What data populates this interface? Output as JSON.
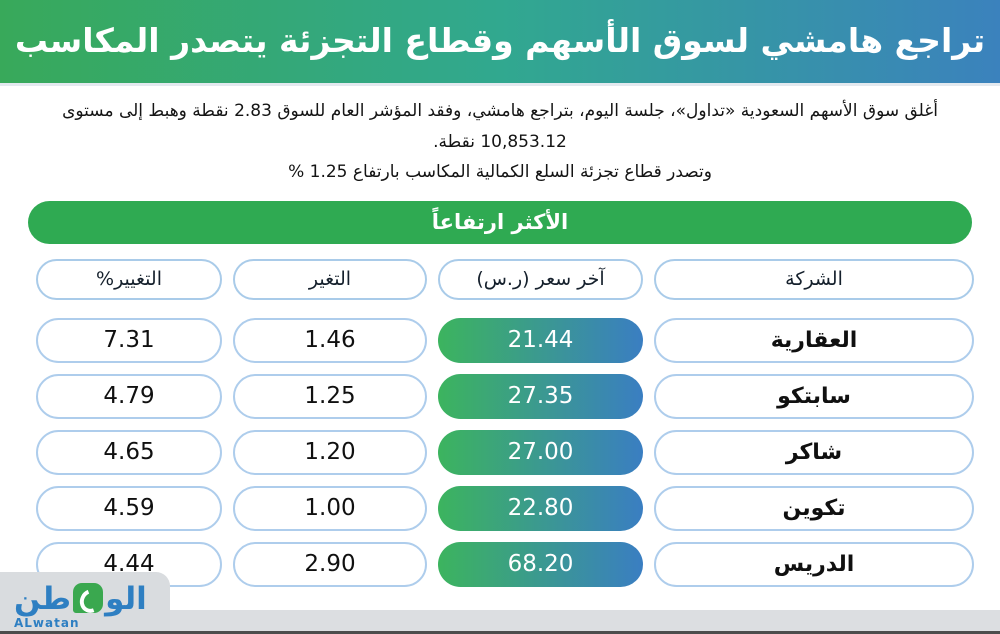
{
  "title": "تراجع هامشي لسوق الأسهم وقطاع التجزئة يتصدر المكاسب",
  "subtitle": {
    "line1": "أغلق سوق الأسهم السعودية «تداول»، جلسة اليوم، بتراجع هامشي، وفقد المؤشر العام للسوق 2.83 نقطة وهبط إلى مستوى 10,853.12 نقطة.",
    "line2": "وتصدر قطاع تجزئة السلع الكمالية المكاسب بارتفاع 1.25 %"
  },
  "section_banner": "الأكثر ارتفاعاً",
  "table": {
    "headers": {
      "company": "الشركة",
      "last_price": "آخر سعر (ر.س)",
      "change": "التغير",
      "change_pct": "التغيير%"
    },
    "rows": [
      {
        "company": "العقارية",
        "last_price": "21.44",
        "change": "1.46",
        "change_pct": "7.31"
      },
      {
        "company": "سابتكو",
        "last_price": "27.35",
        "change": "1.25",
        "change_pct": "4.79"
      },
      {
        "company": "شاكر",
        "last_price": "27.00",
        "change": "1.20",
        "change_pct": "4.65"
      },
      {
        "company": "تكوين",
        "last_price": "22.80",
        "change": "1.00",
        "change_pct": "4.59"
      },
      {
        "company": "الدريس",
        "last_price": "68.20",
        "change": "2.90",
        "change_pct": "4.44"
      }
    ]
  },
  "footer": {
    "logo_arabic_right": "الو",
    "logo_arabic_left": "طن",
    "logo_latin": "ALwatan"
  },
  "colors": {
    "title_gradient_left": "#38a95a",
    "title_gradient_right": "#3b82bd",
    "section_banner_green": "#2faa52",
    "price_pill_gradient_left": "#3cb45e",
    "price_pill_gradient_right": "#3a7ec2",
    "pill_border_blue": "#aecdec",
    "footer_gray": "#dcdee1",
    "logo_blue": "#2e7fc2",
    "logo_green": "#3aa84f"
  },
  "chart_data": {
    "type": "table",
    "title": "الأكثر ارتفاعاً",
    "columns": [
      "الشركة",
      "آخر سعر (ر.س)",
      "التغير",
      "التغيير%"
    ],
    "rows": [
      [
        "العقارية",
        21.44,
        1.46,
        7.31
      ],
      [
        "سابتكو",
        27.35,
        1.25,
        4.79
      ],
      [
        "شاكر",
        27.0,
        1.2,
        4.65
      ],
      [
        "تكوين",
        22.8,
        1.0,
        4.59
      ],
      [
        "الدريس",
        68.2,
        2.9,
        4.44
      ]
    ],
    "context": {
      "index_change_points": -2.83,
      "index_level": 10853.12,
      "top_sector_gain_pct": 1.25
    }
  }
}
